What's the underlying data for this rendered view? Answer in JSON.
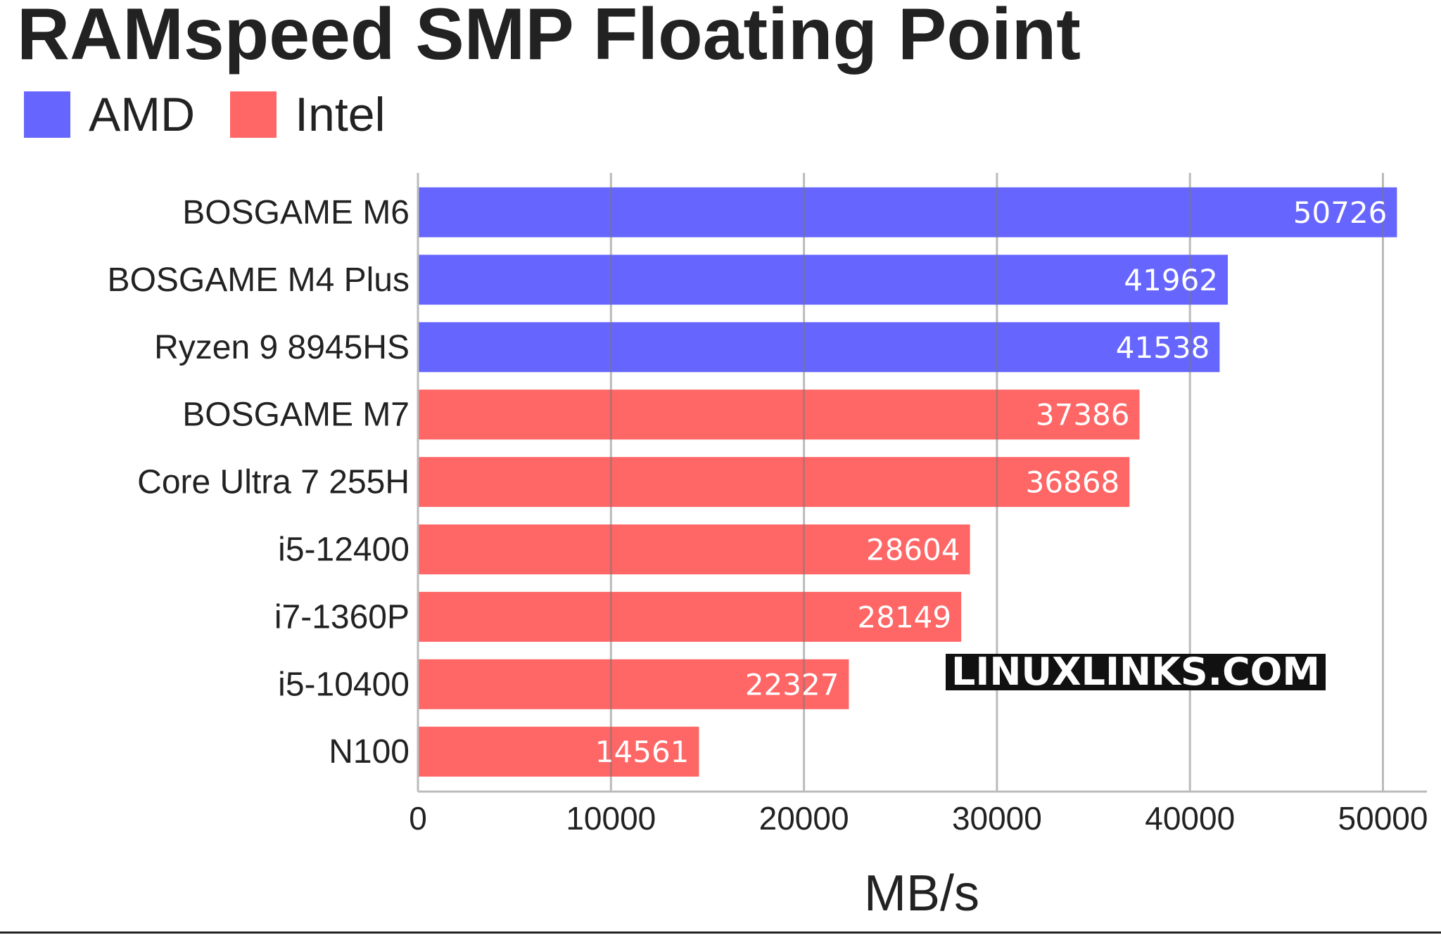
{
  "chart_data": {
    "type": "bar",
    "orientation": "horizontal",
    "title": "RAMspeed SMP Floating Point",
    "xlabel": "MB/s",
    "ylabel": "",
    "xlim": [
      0,
      52000
    ],
    "xticks": [
      0,
      10000,
      20000,
      30000,
      40000,
      50000
    ],
    "grid": "vertical",
    "legend_placement": "top-left",
    "series": [
      {
        "name": "AMD",
        "color": "#6666ff"
      },
      {
        "name": "Intel",
        "color": "#ff6666"
      }
    ],
    "bars": [
      {
        "category": "BOSGAME M6",
        "value": 50726,
        "series": "AMD"
      },
      {
        "category": "BOSGAME M4 Plus",
        "value": 41962,
        "series": "AMD"
      },
      {
        "category": "Ryzen 9 8945HS",
        "value": 41538,
        "series": "AMD"
      },
      {
        "category": "BOSGAME M7",
        "value": 37386,
        "series": "Intel"
      },
      {
        "category": "Core Ultra 7 255H",
        "value": 36868,
        "series": "Intel"
      },
      {
        "category": "i5-12400",
        "value": 28604,
        "series": "Intel"
      },
      {
        "category": "i7-1360P",
        "value": 28149,
        "series": "Intel"
      },
      {
        "category": "i5-10400",
        "value": 22327,
        "series": "Intel"
      },
      {
        "category": "N100",
        "value": 14561,
        "series": "Intel"
      }
    ]
  },
  "watermark": "LINUXLINKS.COM"
}
